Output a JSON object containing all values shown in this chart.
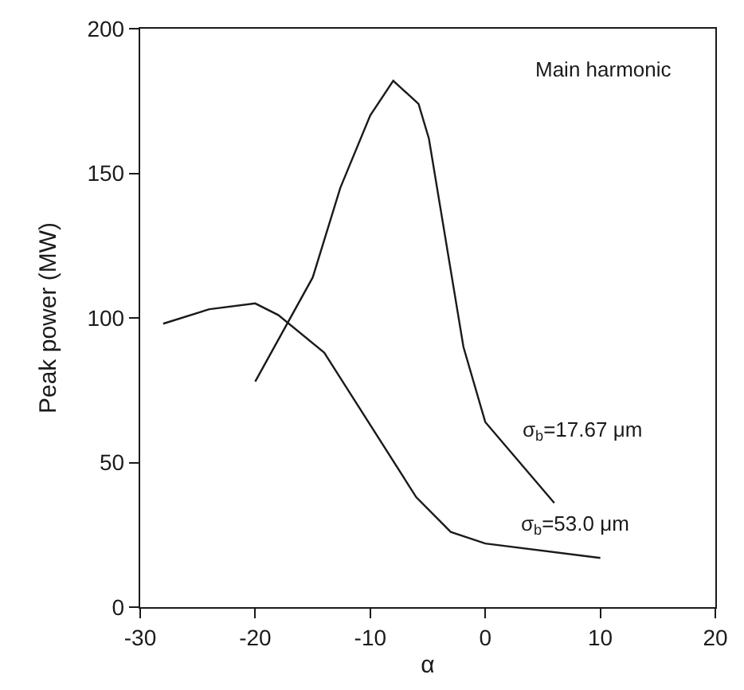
{
  "chart_data": {
    "type": "line",
    "xlabel": "α",
    "ylabel": "Peak power (MW)",
    "annotations": [
      "Main harmonic"
    ],
    "xlim": [
      -30,
      20
    ],
    "xticks": [
      -30,
      -20,
      -10,
      0,
      10,
      20
    ],
    "ylim": [
      0,
      200
    ],
    "yticks": [
      0,
      50,
      100,
      150,
      200
    ],
    "legend": false,
    "marker": "none",
    "line_style": "solid",
    "series": [
      {
        "name": "σ$_{b}$=17.67 μm",
        "color": "#1a1a1a",
        "x": [
          -20,
          -15,
          -12.6,
          -10,
          -8,
          -5.8,
          -4.9,
          -1.9,
          0,
          6
        ],
        "values": [
          78,
          114,
          145,
          170,
          182,
          174,
          162,
          90,
          64,
          36
        ]
      },
      {
        "name": "σ$_{b}$=53.0 μm",
        "color": "#1a1a1a",
        "x": [
          -28,
          -24,
          -20,
          -18,
          -14,
          -12.4,
          -6,
          -3,
          0,
          10
        ],
        "values": [
          98,
          103,
          105,
          101,
          88,
          78,
          38,
          26,
          22,
          17
        ]
      }
    ]
  }
}
